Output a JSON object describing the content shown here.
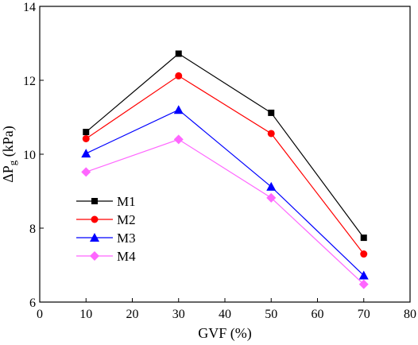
{
  "chart_data": {
    "type": "line",
    "xlabel": "GVF (%)",
    "ylabel": "ΔP",
    "ylabel_sub": "g",
    "ylabel_unit": " (kPa)",
    "xlim": [
      0,
      80
    ],
    "ylim": [
      6,
      14
    ],
    "xticks": [
      0,
      10,
      20,
      30,
      40,
      50,
      60,
      70,
      80
    ],
    "yticks": [
      6,
      8,
      10,
      12,
      14
    ],
    "xtick_labels": [
      "0",
      "10",
      "20",
      "30",
      "40",
      "50",
      "60",
      "70",
      "80"
    ],
    "ytick_labels": [
      "6",
      "8",
      "10",
      "12",
      "14"
    ],
    "x": [
      10,
      30,
      50,
      70
    ],
    "grid": false,
    "legend_position": "left",
    "series": [
      {
        "name": "M1",
        "values": [
          10.6,
          12.72,
          11.12,
          7.74
        ],
        "color": "#000000",
        "marker": "square"
      },
      {
        "name": "M2",
        "values": [
          10.42,
          12.12,
          10.56,
          7.3
        ],
        "color": "#ff0000",
        "marker": "circle"
      },
      {
        "name": "M3",
        "values": [
          10.02,
          11.2,
          9.12,
          6.72
        ],
        "color": "#0000ff",
        "marker": "triangle"
      },
      {
        "name": "M4",
        "values": [
          9.52,
          10.4,
          8.82,
          6.48
        ],
        "color": "#ff66ff",
        "marker": "diamond"
      }
    ]
  }
}
